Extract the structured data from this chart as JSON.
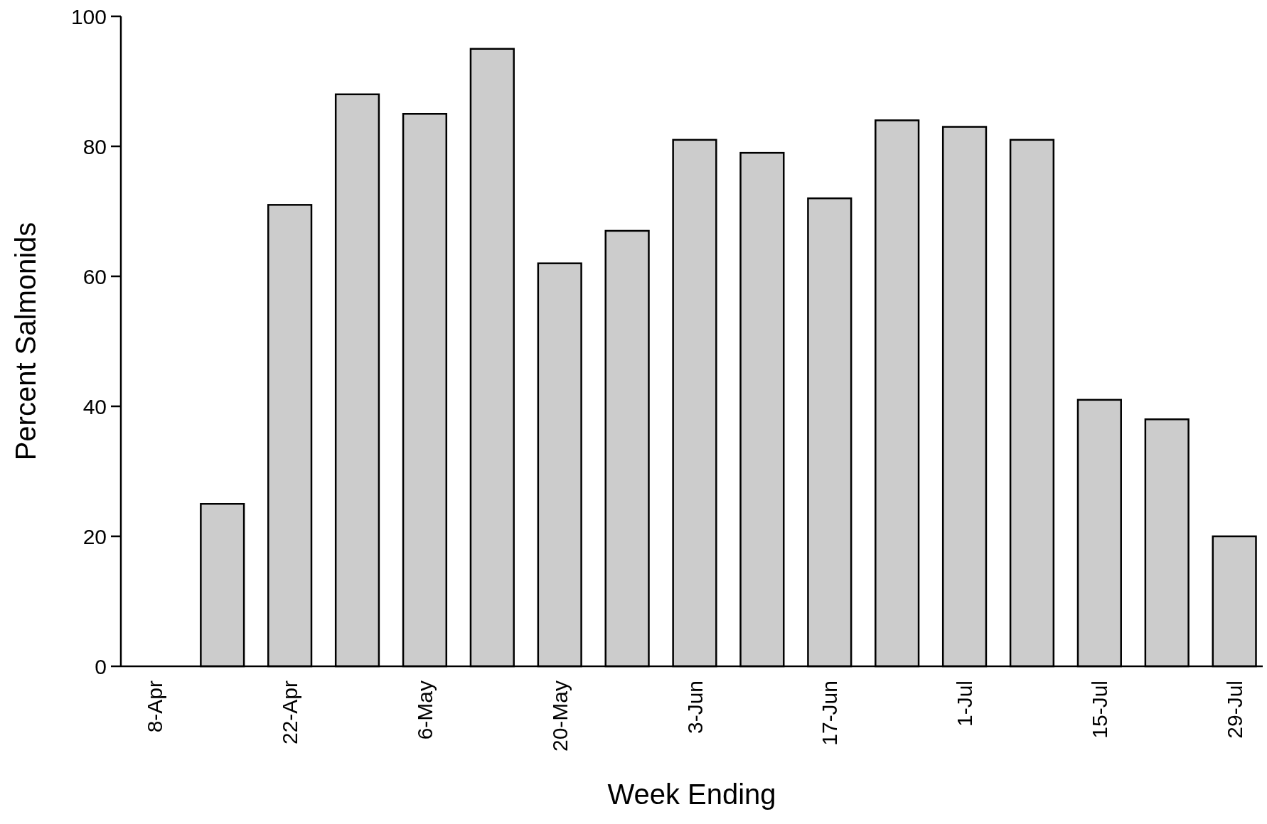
{
  "chart_data": {
    "type": "bar",
    "xlabel": "Week Ending",
    "ylabel": "Percent Salmonids",
    "categories": [
      "8-Apr",
      null,
      "22-Apr",
      null,
      "6-May",
      null,
      "20-May",
      null,
      "3-Jun",
      null,
      "17-Jun",
      null,
      "1-Jul",
      null,
      "15-Jul",
      null,
      "29-Jul"
    ],
    "values": [
      0,
      25,
      71,
      88,
      85,
      95,
      62,
      67,
      81,
      79,
      72,
      84,
      83,
      81,
      41,
      38,
      20
    ],
    "color": "#cccccc",
    "ylim": [
      0,
      100
    ],
    "yticks": [
      0,
      20,
      40,
      60,
      80,
      100
    ],
    "grid": false
  }
}
